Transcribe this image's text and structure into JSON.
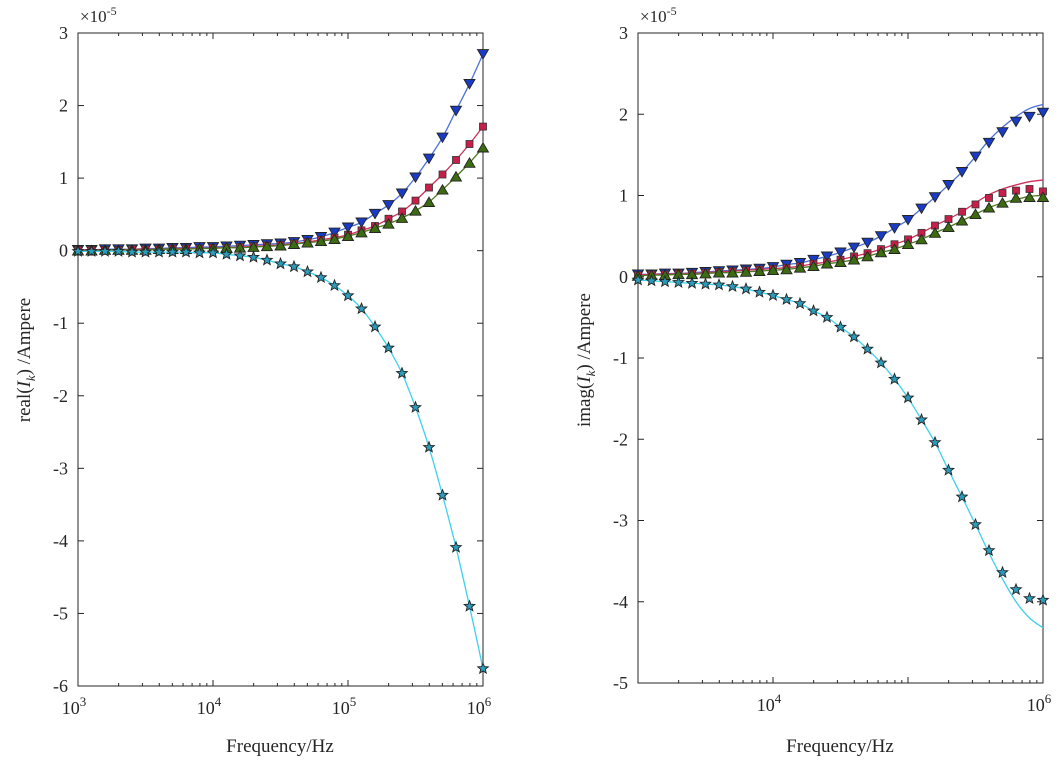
{
  "chart_data": [
    {
      "type": "line",
      "xscale": "log",
      "xlim": [
        1000,
        1000000
      ],
      "ylim": [
        -6,
        3
      ],
      "y_multiplier_label": {
        "prefix": "×10",
        "exp": "-5"
      },
      "xlabel": "Frequency/Hz",
      "ylabel": {
        "pre": "real(",
        "var": "I",
        "sub": "k",
        "post": ") /Ampere"
      },
      "xticks": [
        {
          "value": 1000,
          "base": "10",
          "exp": "3"
        },
        {
          "value": 10000,
          "base": "10",
          "exp": "4"
        },
        {
          "value": 100000,
          "base": "10",
          "exp": "5"
        },
        {
          "value": 1000000,
          "base": "10",
          "exp": "6"
        }
      ],
      "yticks": [
        {
          "value": 3,
          "label": "3"
        },
        {
          "value": 2,
          "label": "2"
        },
        {
          "value": 1,
          "label": "1"
        },
        {
          "value": 0,
          "label": "0"
        },
        {
          "value": -1,
          "label": "-1"
        },
        {
          "value": -2,
          "label": "-2"
        },
        {
          "value": -3,
          "label": "-3"
        },
        {
          "value": -4,
          "label": "-4"
        },
        {
          "value": -5,
          "label": "-5"
        },
        {
          "value": -6,
          "label": "-6"
        }
      ],
      "grid": false,
      "x_log10": [
        3.0,
        3.1,
        3.2,
        3.3,
        3.4,
        3.5,
        3.6,
        3.7,
        3.8,
        3.9,
        4.0,
        4.1,
        4.2,
        4.3,
        4.4,
        4.5,
        4.6,
        4.7,
        4.8,
        4.9,
        5.0,
        5.1,
        5.2,
        5.3,
        5.4,
        5.5,
        5.6,
        5.7,
        5.8,
        5.9,
        6.0
      ],
      "series": [
        {
          "marker": "triangle-down",
          "color": "#1a3cc4",
          "line_color": "#4c70d8",
          "values": [
            0.01,
            0.01,
            0.02,
            0.02,
            0.02,
            0.03,
            0.03,
            0.04,
            0.04,
            0.05,
            0.05,
            0.06,
            0.07,
            0.08,
            0.09,
            0.1,
            0.12,
            0.15,
            0.19,
            0.25,
            0.32,
            0.39,
            0.51,
            0.63,
            0.79,
            1.01,
            1.27,
            1.56,
            1.93,
            2.3,
            2.71
          ],
          "fit": [
            0.01,
            0.01,
            0.02,
            0.02,
            0.02,
            0.03,
            0.03,
            0.04,
            0.04,
            0.05,
            0.05,
            0.06,
            0.07,
            0.08,
            0.09,
            0.1,
            0.12,
            0.15,
            0.19,
            0.25,
            0.32,
            0.39,
            0.51,
            0.63,
            0.79,
            1.01,
            1.27,
            1.56,
            1.93,
            2.3,
            2.71
          ]
        },
        {
          "marker": "square",
          "color": "#c81e4a",
          "line_color": "#d0305a",
          "values": [
            0.01,
            0.01,
            0.01,
            0.01,
            0.02,
            0.02,
            0.02,
            0.03,
            0.03,
            0.03,
            0.04,
            0.04,
            0.05,
            0.06,
            0.07,
            0.08,
            0.1,
            0.12,
            0.15,
            0.18,
            0.22,
            0.28,
            0.34,
            0.44,
            0.54,
            0.69,
            0.87,
            1.05,
            1.25,
            1.47,
            1.71
          ],
          "fit": [
            0.01,
            0.01,
            0.01,
            0.01,
            0.02,
            0.02,
            0.02,
            0.03,
            0.03,
            0.03,
            0.04,
            0.04,
            0.05,
            0.06,
            0.07,
            0.08,
            0.1,
            0.12,
            0.15,
            0.18,
            0.22,
            0.28,
            0.34,
            0.44,
            0.54,
            0.69,
            0.87,
            1.05,
            1.25,
            1.47,
            1.71
          ]
        },
        {
          "marker": "triangle-up",
          "color": "#3d6b12",
          "line_color": "#4d7a20",
          "values": [
            0.0,
            0.0,
            0.01,
            0.01,
            0.01,
            0.01,
            0.02,
            0.02,
            0.02,
            0.03,
            0.03,
            0.04,
            0.04,
            0.05,
            0.06,
            0.07,
            0.09,
            0.11,
            0.13,
            0.16,
            0.2,
            0.25,
            0.31,
            0.37,
            0.45,
            0.55,
            0.67,
            0.84,
            1.02,
            1.21,
            1.42
          ],
          "fit": [
            0.0,
            0.0,
            0.01,
            0.01,
            0.01,
            0.01,
            0.02,
            0.02,
            0.02,
            0.03,
            0.03,
            0.04,
            0.04,
            0.05,
            0.06,
            0.07,
            0.09,
            0.11,
            0.13,
            0.16,
            0.2,
            0.25,
            0.31,
            0.37,
            0.45,
            0.55,
            0.67,
            0.84,
            1.02,
            1.21,
            1.42
          ]
        },
        {
          "marker": "star",
          "color": "#2a9cbc",
          "line_color": "#3fd0ee",
          "values": [
            -0.01,
            -0.01,
            -0.01,
            -0.01,
            -0.02,
            -0.02,
            -0.02,
            -0.02,
            -0.02,
            -0.03,
            -0.03,
            -0.05,
            -0.07,
            -0.09,
            -0.13,
            -0.18,
            -0.22,
            -0.29,
            -0.37,
            -0.48,
            -0.62,
            -0.8,
            -1.05,
            -1.34,
            -1.69,
            -2.16,
            -2.71,
            -3.37,
            -4.09,
            -4.9,
            -5.76
          ],
          "fit": [
            -0.01,
            -0.01,
            -0.01,
            -0.01,
            -0.02,
            -0.02,
            -0.02,
            -0.02,
            -0.02,
            -0.03,
            -0.03,
            -0.05,
            -0.07,
            -0.09,
            -0.13,
            -0.18,
            -0.22,
            -0.29,
            -0.37,
            -0.48,
            -0.62,
            -0.8,
            -1.05,
            -1.34,
            -1.69,
            -2.16,
            -2.71,
            -3.37,
            -4.09,
            -4.9,
            -5.76
          ]
        }
      ]
    },
    {
      "type": "line",
      "xscale": "log",
      "xlim": [
        1000,
        1000000
      ],
      "ylim": [
        -5,
        3
      ],
      "y_multiplier_label": {
        "prefix": "×10",
        "exp": "-5"
      },
      "xlabel": "Frequency/Hz",
      "ylabel": {
        "pre": "imag(",
        "var": "I",
        "sub": "k",
        "post": ") /Ampere"
      },
      "xticks": [
        {
          "value": 1000,
          "base": "",
          "exp": ""
        },
        {
          "value": 10000,
          "base": "10",
          "exp": "4"
        },
        {
          "value": 100000,
          "base": "",
          "exp": ""
        },
        {
          "value": 1000000,
          "base": "10",
          "exp": "6"
        }
      ],
      "yticks": [
        {
          "value": 3,
          "label": "3"
        },
        {
          "value": 2,
          "label": "2"
        },
        {
          "value": 1,
          "label": "1"
        },
        {
          "value": 0,
          "label": "0"
        },
        {
          "value": -1,
          "label": "-1"
        },
        {
          "value": -2,
          "label": "-2"
        },
        {
          "value": -3,
          "label": "-3"
        },
        {
          "value": -4,
          "label": "-4"
        },
        {
          "value": -5,
          "label": "-5"
        }
      ],
      "grid": false,
      "x_log10": [
        3.0,
        3.1,
        3.2,
        3.3,
        3.4,
        3.5,
        3.6,
        3.7,
        3.8,
        3.9,
        4.0,
        4.1,
        4.2,
        4.3,
        4.4,
        4.5,
        4.6,
        4.7,
        4.8,
        4.9,
        5.0,
        5.1,
        5.2,
        5.3,
        5.4,
        5.5,
        5.6,
        5.7,
        5.8,
        5.9,
        6.0
      ],
      "series": [
        {
          "marker": "triangle-down",
          "color": "#1a3cc4",
          "line_color": "#4c70d8",
          "values": [
            0.03,
            0.03,
            0.04,
            0.04,
            0.05,
            0.06,
            0.07,
            0.08,
            0.09,
            0.1,
            0.12,
            0.15,
            0.17,
            0.21,
            0.25,
            0.3,
            0.36,
            0.42,
            0.5,
            0.6,
            0.7,
            0.84,
            0.98,
            1.13,
            1.29,
            1.48,
            1.65,
            1.78,
            1.91,
            1.97,
            2.02
          ],
          "fit": [
            0.03,
            0.03,
            0.04,
            0.04,
            0.05,
            0.06,
            0.07,
            0.08,
            0.09,
            0.1,
            0.12,
            0.15,
            0.17,
            0.21,
            0.25,
            0.3,
            0.36,
            0.42,
            0.5,
            0.6,
            0.7,
            0.84,
            0.98,
            1.13,
            1.29,
            1.48,
            1.68,
            1.84,
            1.97,
            2.07,
            2.12
          ]
        },
        {
          "marker": "square",
          "color": "#c81e4a",
          "line_color": "#d0305a",
          "values": [
            0.02,
            0.03,
            0.03,
            0.04,
            0.04,
            0.05,
            0.06,
            0.07,
            0.08,
            0.09,
            0.1,
            0.11,
            0.13,
            0.16,
            0.18,
            0.21,
            0.25,
            0.29,
            0.34,
            0.4,
            0.46,
            0.54,
            0.63,
            0.71,
            0.8,
            0.89,
            0.97,
            1.03,
            1.06,
            1.08,
            1.05
          ],
          "fit": [
            0.02,
            0.03,
            0.03,
            0.04,
            0.04,
            0.05,
            0.06,
            0.07,
            0.08,
            0.09,
            0.1,
            0.11,
            0.13,
            0.16,
            0.18,
            0.21,
            0.25,
            0.29,
            0.34,
            0.4,
            0.46,
            0.54,
            0.63,
            0.71,
            0.8,
            0.91,
            1.01,
            1.08,
            1.13,
            1.17,
            1.19
          ]
        },
        {
          "marker": "triangle-up",
          "color": "#3d6b12",
          "line_color": "#4d7a20",
          "values": [
            0.01,
            0.02,
            0.02,
            0.03,
            0.03,
            0.04,
            0.05,
            0.05,
            0.06,
            0.07,
            0.08,
            0.09,
            0.11,
            0.13,
            0.16,
            0.18,
            0.21,
            0.25,
            0.3,
            0.34,
            0.4,
            0.46,
            0.54,
            0.61,
            0.69,
            0.77,
            0.85,
            0.91,
            0.97,
            0.98,
            0.98
          ],
          "fit": [
            0.01,
            0.02,
            0.02,
            0.03,
            0.03,
            0.04,
            0.05,
            0.05,
            0.06,
            0.07,
            0.08,
            0.09,
            0.11,
            0.13,
            0.16,
            0.18,
            0.21,
            0.25,
            0.3,
            0.34,
            0.4,
            0.46,
            0.54,
            0.61,
            0.69,
            0.77,
            0.85,
            0.91,
            0.95,
            0.99,
            1.0
          ]
        },
        {
          "marker": "star",
          "color": "#2a9cbc",
          "line_color": "#3fd0ee",
          "values": [
            -0.04,
            -0.05,
            -0.06,
            -0.07,
            -0.08,
            -0.09,
            -0.1,
            -0.12,
            -0.15,
            -0.19,
            -0.23,
            -0.28,
            -0.33,
            -0.42,
            -0.5,
            -0.62,
            -0.74,
            -0.89,
            -1.06,
            -1.26,
            -1.49,
            -1.76,
            -2.04,
            -2.38,
            -2.71,
            -3.05,
            -3.37,
            -3.64,
            -3.85,
            -3.96,
            -3.98
          ],
          "fit": [
            -0.04,
            -0.05,
            -0.06,
            -0.07,
            -0.08,
            -0.09,
            -0.1,
            -0.12,
            -0.15,
            -0.19,
            -0.23,
            -0.28,
            -0.33,
            -0.42,
            -0.5,
            -0.62,
            -0.74,
            -0.89,
            -1.06,
            -1.26,
            -1.49,
            -1.76,
            -2.04,
            -2.38,
            -2.71,
            -3.05,
            -3.4,
            -3.72,
            -4.0,
            -4.2,
            -4.32
          ]
        }
      ]
    }
  ]
}
